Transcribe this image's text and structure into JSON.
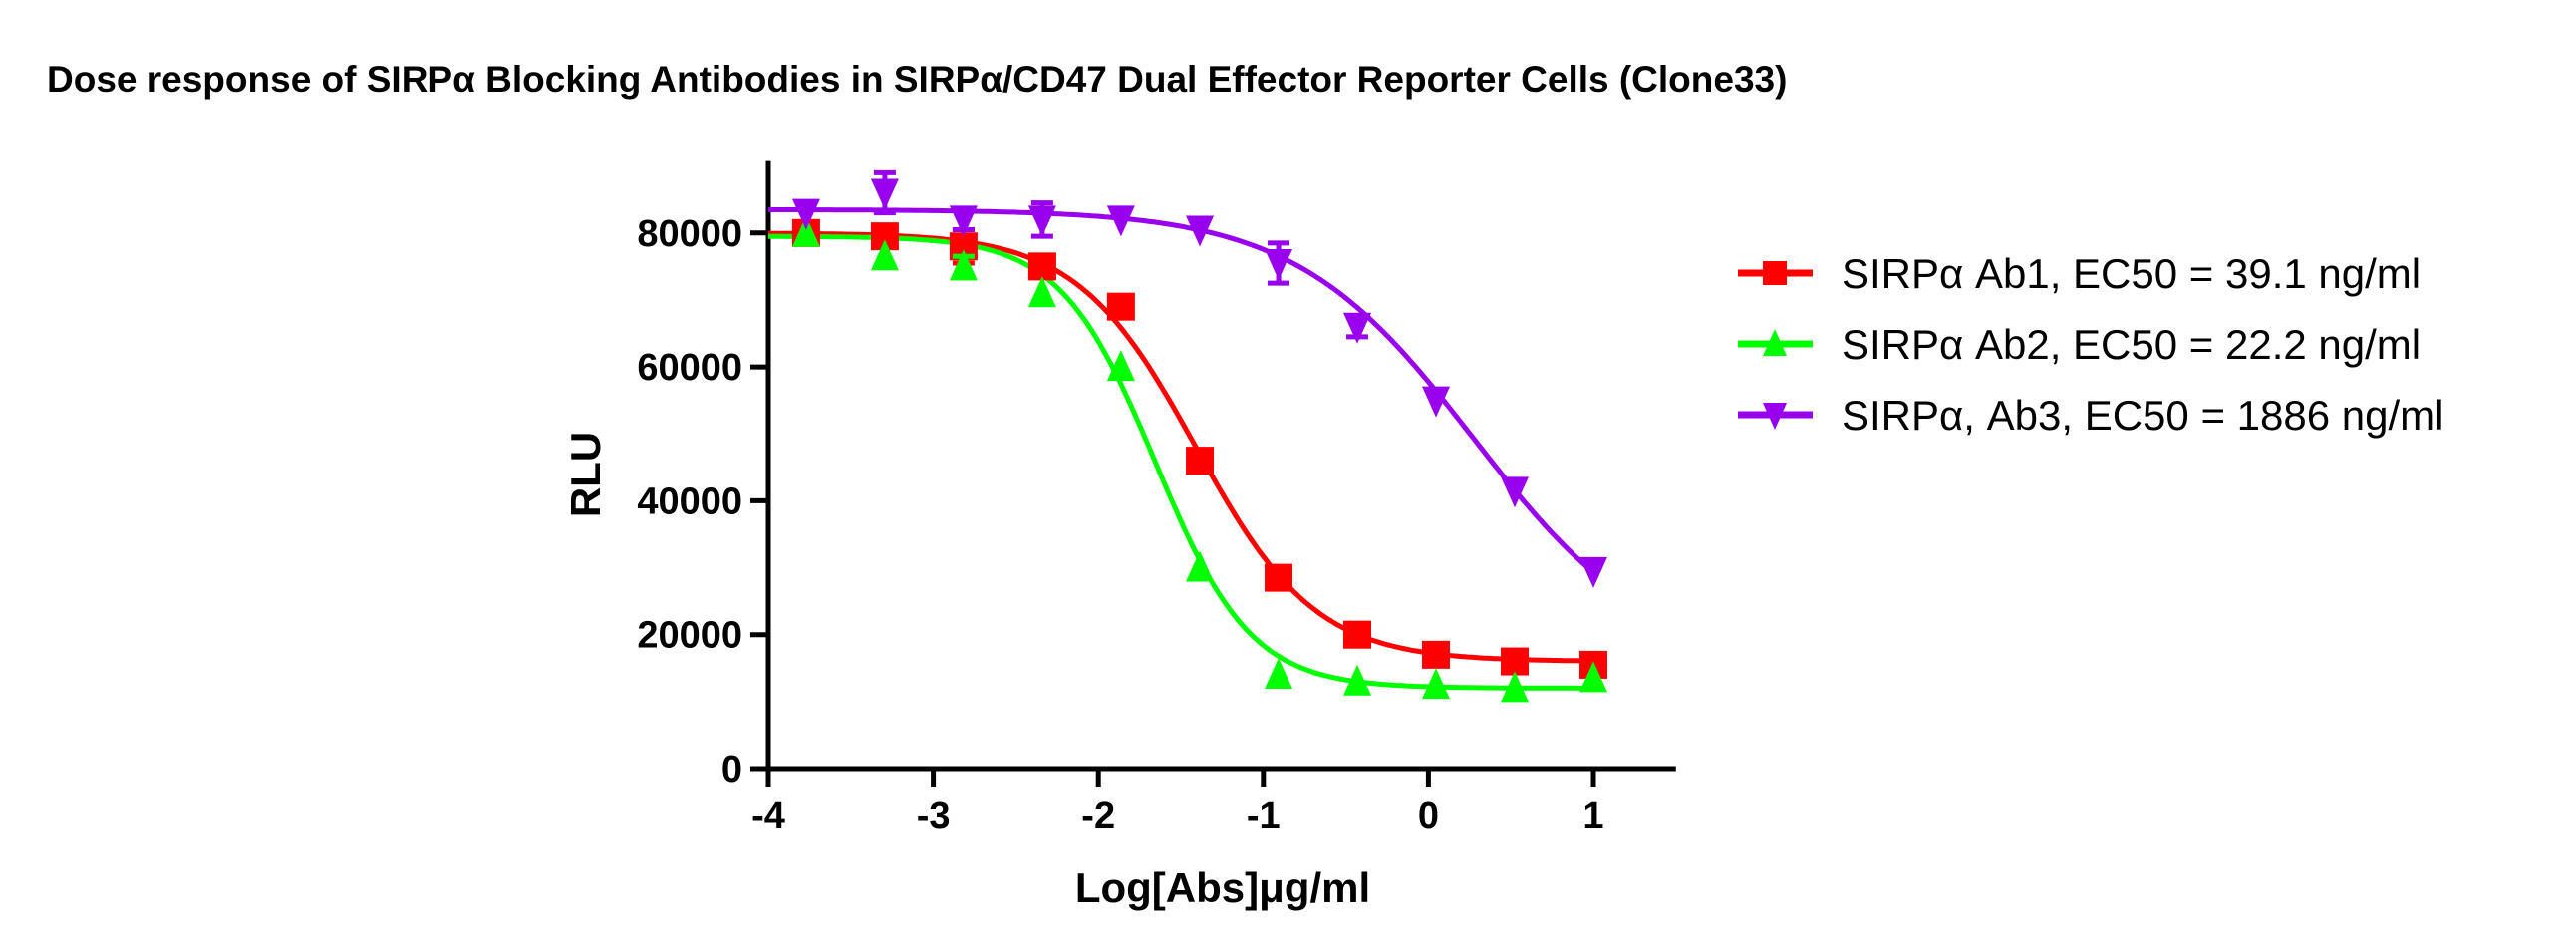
{
  "chart_data": {
    "type": "line",
    "title": "Dose response of SIRPα Blocking Antibodies in SIRPα/CD47 Dual Effector Reporter Cells (Clone33)",
    "xlabel": "Log[Abs]μg/ml",
    "ylabel": "RLU",
    "xlim": [
      -4,
      1.5
    ],
    "ylim": [
      0,
      90000
    ],
    "xticks": [
      "-4",
      "-3",
      "-2",
      "-1",
      "0",
      "1"
    ],
    "yticks": [
      "0",
      "20000",
      "40000",
      "60000",
      "80000"
    ],
    "grid": false,
    "legend_position": "right",
    "x": [
      -3.771,
      -3.294,
      -2.817,
      -2.34,
      -1.863,
      -1.385,
      -0.908,
      -0.431,
      0.046,
      0.523,
      1.0
    ],
    "series": [
      {
        "name": "SIRPα  Ab1, EC50 = 39.1 ng/ml",
        "color": "#ff0000",
        "marker": "square",
        "values": [
          80000,
          79500,
          78000,
          75000,
          69000,
          46000,
          28500,
          20000,
          17000,
          16000,
          15500
        ],
        "errors": [
          1000,
          1500,
          2500,
          1500,
          1500,
          0,
          0,
          1000,
          1000,
          0,
          0
        ],
        "fit": {
          "top": 80000,
          "bottom": 16000,
          "logEC50": -1.408,
          "hill": 1.2
        }
      },
      {
        "name": "SIRPα  Ab2, EC50 = 22.2 ng/ml",
        "color": "#00ff00",
        "marker": "triangle-up",
        "values": [
          80000,
          76500,
          75000,
          71000,
          60000,
          30000,
          14000,
          13000,
          12500,
          12000,
          13500
        ],
        "errors": [
          0,
          0,
          1500,
          0,
          0,
          0,
          0,
          0,
          0,
          0,
          0
        ],
        "fit": {
          "top": 79500,
          "bottom": 12000,
          "logEC50": -1.654,
          "hill": 1.5
        }
      },
      {
        "name": "SIRPα, Ab3, EC50 = 1886 ng/ml",
        "color": "#9900ee",
        "marker": "triangle-down",
        "values": [
          83000,
          86000,
          82000,
          82000,
          82000,
          80500,
          75500,
          66000,
          55000,
          41500,
          29500
        ],
        "errors": [
          0,
          3000,
          1500,
          2500,
          0,
          0,
          3000,
          1500,
          0,
          0,
          0
        ],
        "fit": {
          "top": 83500,
          "bottom": 15000,
          "logEC50": 0.276,
          "hill": 0.8
        }
      }
    ]
  }
}
